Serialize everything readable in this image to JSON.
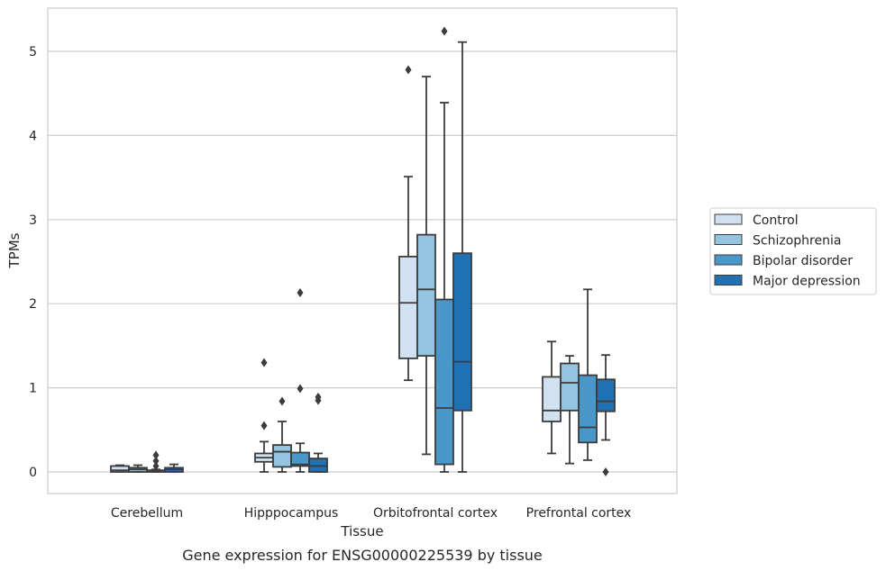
{
  "chart_data": {
    "type": "box",
    "xlabel": "Tissue",
    "ylabel": "TPMs",
    "caption": "Gene expression for ENSG00000225539 by tissue",
    "ylim": [
      -0.25,
      5.5
    ],
    "yticks": [
      0,
      1,
      2,
      3,
      4,
      5
    ],
    "grid": true,
    "legend_position": "right",
    "categories": [
      "Cerebellum",
      "Hipppocampus",
      "Orbitofrontal cortex",
      "Prefrontal cortex"
    ],
    "series": [
      {
        "name": "Control",
        "color": "#d0e1f2",
        "boxes": [
          {
            "whislo": 0.0,
            "q1": 0.0,
            "med": 0.02,
            "q3": 0.07,
            "whishi": 0.08,
            "fliers": []
          },
          {
            "whislo": 0.0,
            "q1": 0.12,
            "med": 0.17,
            "q3": 0.22,
            "whishi": 0.36,
            "fliers": [
              0.55,
              1.3
            ]
          },
          {
            "whislo": 1.09,
            "q1": 1.35,
            "med": 2.01,
            "q3": 2.56,
            "whishi": 3.51,
            "fliers": [
              4.78
            ]
          },
          {
            "whislo": 0.22,
            "q1": 0.6,
            "med": 0.73,
            "q3": 1.13,
            "whishi": 1.55,
            "fliers": []
          }
        ]
      },
      {
        "name": "Schizophrenia",
        "color": "#94c4df",
        "boxes": [
          {
            "whislo": 0.0,
            "q1": 0.0,
            "med": 0.03,
            "q3": 0.05,
            "whishi": 0.08,
            "fliers": []
          },
          {
            "whislo": 0.0,
            "q1": 0.06,
            "med": 0.24,
            "q3": 0.32,
            "whishi": 0.6,
            "fliers": [
              0.84
            ]
          },
          {
            "whislo": 0.21,
            "q1": 1.38,
            "med": 2.17,
            "q3": 2.82,
            "whishi": 4.7,
            "fliers": []
          },
          {
            "whislo": 0.1,
            "q1": 0.73,
            "med": 1.06,
            "q3": 1.29,
            "whishi": 1.38,
            "fliers": []
          }
        ]
      },
      {
        "name": "Bipolar disorder",
        "color": "#4a98c9",
        "boxes": [
          {
            "whislo": 0.0,
            "q1": 0.0,
            "med": 0.01,
            "q3": 0.02,
            "whishi": 0.03,
            "fliers": [
              0.07,
              0.13,
              0.2
            ]
          },
          {
            "whislo": 0.0,
            "q1": 0.07,
            "med": 0.09,
            "q3": 0.23,
            "whishi": 0.34,
            "fliers": [
              0.99,
              2.13
            ]
          },
          {
            "whislo": 0.0,
            "q1": 0.09,
            "med": 0.76,
            "q3": 2.05,
            "whishi": 4.39,
            "fliers": [
              5.24
            ]
          },
          {
            "whislo": 0.14,
            "q1": 0.35,
            "med": 0.53,
            "q3": 1.15,
            "whishi": 2.17,
            "fliers": []
          }
        ]
      },
      {
        "name": "Major depression",
        "color": "#2070b4",
        "boxes": [
          {
            "whislo": 0.0,
            "q1": 0.0,
            "med": 0.03,
            "q3": 0.05,
            "whishi": 0.09,
            "fliers": []
          },
          {
            "whislo": 0.0,
            "q1": 0.0,
            "med": 0.07,
            "q3": 0.16,
            "whishi": 0.22,
            "fliers": [
              0.85,
              0.89
            ]
          },
          {
            "whislo": 0.0,
            "q1": 0.73,
            "med": 1.31,
            "q3": 2.6,
            "whishi": 5.11,
            "fliers": []
          },
          {
            "whislo": 0.38,
            "q1": 0.72,
            "med": 0.84,
            "q3": 1.1,
            "whishi": 1.39,
            "fliers": [
              0.0
            ]
          }
        ]
      }
    ]
  }
}
